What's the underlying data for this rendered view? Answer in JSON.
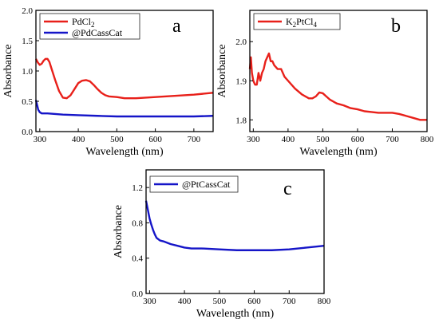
{
  "chart_data": [
    {
      "type": "line",
      "panel_label": "a",
      "xlabel": "Wavelength (nm)",
      "ylabel": "Absorbance",
      "xlim": [
        290,
        750
      ],
      "ylim": [
        0,
        2.0
      ],
      "xticks": [
        300,
        400,
        500,
        600,
        700
      ],
      "yticks": [
        0.0,
        0.5,
        1.0,
        1.5,
        2.0
      ],
      "xtick_labels": [
        "300",
        "400",
        "500",
        "600",
        "700"
      ],
      "ytick_labels": [
        "0.0",
        "0.5",
        "1.0",
        "1.5",
        "2.0"
      ],
      "legend_position": "top-left",
      "series": [
        {
          "name": "PdCl",
          "name_sub": "2",
          "color": "#e8201a",
          "x": [
            290,
            295,
            300,
            305,
            310,
            315,
            320,
            325,
            330,
            340,
            350,
            360,
            370,
            380,
            390,
            400,
            410,
            420,
            430,
            440,
            450,
            460,
            470,
            480,
            500,
            520,
            550,
            600,
            650,
            700,
            750
          ],
          "y": [
            1.2,
            1.14,
            1.1,
            1.12,
            1.17,
            1.2,
            1.2,
            1.15,
            1.05,
            0.85,
            0.67,
            0.56,
            0.55,
            0.6,
            0.7,
            0.8,
            0.84,
            0.85,
            0.83,
            0.77,
            0.7,
            0.64,
            0.6,
            0.58,
            0.57,
            0.55,
            0.55,
            0.57,
            0.59,
            0.61,
            0.64
          ]
        },
        {
          "name": "@PdCassCat",
          "color": "#1515c8",
          "x": [
            290,
            293,
            296,
            300,
            305,
            310,
            320,
            340,
            360,
            400,
            450,
            500,
            550,
            600,
            650,
            700,
            750
          ],
          "y": [
            0.52,
            0.44,
            0.36,
            0.32,
            0.3,
            0.3,
            0.3,
            0.29,
            0.28,
            0.27,
            0.26,
            0.25,
            0.25,
            0.25,
            0.25,
            0.25,
            0.26
          ]
        }
      ]
    },
    {
      "type": "line",
      "panel_label": "b",
      "xlabel": "Wavelength (nm)",
      "ylabel": "Absorbance",
      "xlim": [
        290,
        800
      ],
      "ylim": [
        1.77,
        2.08
      ],
      "xticks": [
        300,
        400,
        500,
        600,
        700,
        800
      ],
      "yticks": [
        1.8,
        1.9,
        2.0
      ],
      "xtick_labels": [
        "300",
        "400",
        "500",
        "600",
        "700",
        "800"
      ],
      "ytick_labels": [
        "1.8",
        "1.9",
        "2.0"
      ],
      "legend_position": "top-left",
      "series": [
        {
          "name": "K",
          "name_sub": "2",
          "name_tail": "PtCl",
          "name_sub2": "4",
          "color": "#e8201a",
          "x": [
            290,
            293,
            296,
            300,
            305,
            310,
            315,
            320,
            325,
            330,
            335,
            340,
            345,
            350,
            355,
            360,
            370,
            380,
            390,
            400,
            420,
            440,
            460,
            470,
            480,
            490,
            500,
            510,
            520,
            540,
            560,
            580,
            600,
            620,
            640,
            660,
            680,
            700,
            720,
            740,
            760,
            780,
            800
          ],
          "y": [
            1.93,
            1.96,
            1.92,
            1.9,
            1.89,
            1.89,
            1.92,
            1.9,
            1.92,
            1.93,
            1.95,
            1.96,
            1.97,
            1.95,
            1.95,
            1.94,
            1.93,
            1.93,
            1.91,
            1.9,
            1.88,
            1.865,
            1.855,
            1.855,
            1.86,
            1.87,
            1.868,
            1.86,
            1.852,
            1.842,
            1.837,
            1.83,
            1.827,
            1.822,
            1.82,
            1.818,
            1.818,
            1.818,
            1.815,
            1.81,
            1.805,
            1.8,
            1.8
          ]
        }
      ]
    },
    {
      "type": "line",
      "panel_label": "c",
      "xlabel": "Wavelength (nm)",
      "ylabel": "Absorbance",
      "xlim": [
        290,
        800
      ],
      "ylim": [
        0,
        1.4
      ],
      "xticks": [
        300,
        400,
        500,
        600,
        700,
        800
      ],
      "yticks": [
        0.0,
        0.4,
        0.8,
        1.2
      ],
      "xtick_labels": [
        "300",
        "400",
        "500",
        "600",
        "700",
        "800"
      ],
      "ytick_labels": [
        "0.0",
        "0.4",
        "0.8",
        "1.2"
      ],
      "legend_position": "top-left",
      "series": [
        {
          "name": "@PtCassCat",
          "color": "#1515c8",
          "x": [
            290,
            295,
            300,
            305,
            310,
            315,
            320,
            330,
            340,
            360,
            380,
            400,
            420,
            450,
            500,
            550,
            600,
            650,
            700,
            750,
            800
          ],
          "y": [
            1.05,
            0.95,
            0.85,
            0.78,
            0.72,
            0.67,
            0.63,
            0.6,
            0.59,
            0.56,
            0.54,
            0.52,
            0.51,
            0.51,
            0.5,
            0.49,
            0.49,
            0.49,
            0.5,
            0.52,
            0.54
          ]
        }
      ]
    }
  ]
}
